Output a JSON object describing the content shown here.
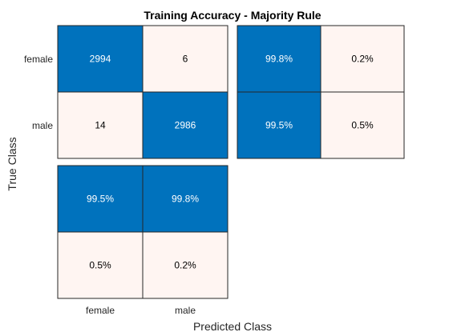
{
  "chart_data": {
    "type": "heatmap",
    "title": "Training Accuracy - Majority Rule",
    "xlabel": "Predicted Class",
    "ylabel": "True Class",
    "classes": [
      "female",
      "male"
    ],
    "confusion_matrix": [
      [
        2994,
        6
      ],
      [
        14,
        2986
      ]
    ],
    "row_summary": [
      [
        "99.8%",
        "0.2%"
      ],
      [
        "99.5%",
        "0.5%"
      ]
    ],
    "column_summary": [
      [
        "99.5%",
        "99.8%"
      ],
      [
        "0.5%",
        "0.2%"
      ]
    ],
    "colors": {
      "high": "#0072BD",
      "low": "#FFF5F2",
      "high_text": "#FFFFFF",
      "low_text": "#000000",
      "border": "#262626"
    }
  }
}
